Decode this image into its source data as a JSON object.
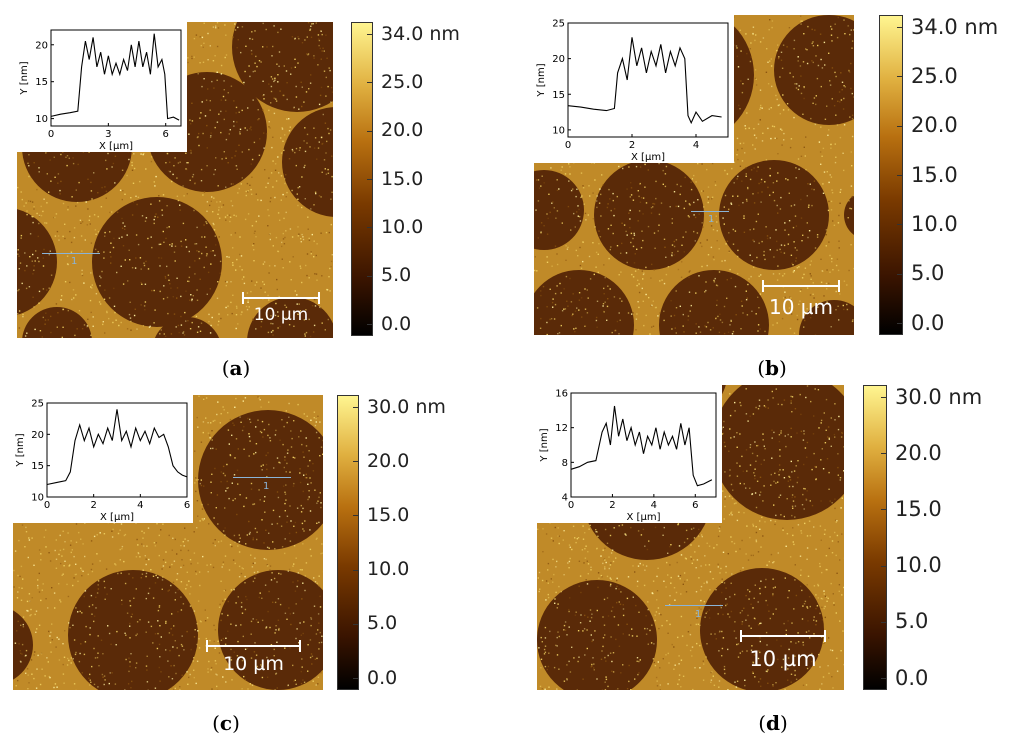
{
  "colors": {
    "dark_domain": "#5a2a08",
    "matrix": "#c08a28",
    "grain": "#f0d060"
  },
  "panels": {
    "a": {
      "caption_open": "(",
      "caption_letter": "a",
      "caption_close": ")",
      "scale_label": "10 µm",
      "colorbar_labels": [
        "34.0 nm",
        "25.0",
        "20.0",
        "15.0",
        "10.0",
        "5.0",
        "0.0"
      ],
      "profile_marker": "1",
      "chart_data": {
        "type": "line",
        "xlabel": "X [µm]",
        "ylabel": "Y [nm]",
        "xlim": [
          0,
          6.8
        ],
        "ylim": [
          9,
          22
        ],
        "xticks": [
          "0",
          "3",
          "6"
        ],
        "yticks": [
          "10",
          "15",
          "20"
        ],
        "x": [
          0,
          0.5,
          1.0,
          1.4,
          1.6,
          1.8,
          2.0,
          2.2,
          2.4,
          2.6,
          2.8,
          3.0,
          3.2,
          3.4,
          3.6,
          3.8,
          4.0,
          4.2,
          4.4,
          4.6,
          4.8,
          5.0,
          5.2,
          5.4,
          5.6,
          5.8,
          5.95,
          6.1,
          6.4,
          6.7
        ],
        "y": [
          10.3,
          10.6,
          10.8,
          11,
          17,
          20.5,
          18,
          21,
          17,
          19,
          16,
          18.5,
          16,
          17.5,
          16,
          18,
          16.5,
          20,
          17,
          20.5,
          17,
          19,
          16,
          21.5,
          17,
          18,
          16,
          10,
          10.2,
          9.8
        ]
      }
    },
    "b": {
      "caption_open": "(",
      "caption_letter": "b",
      "caption_close": ")",
      "scale_label": "10 µm",
      "colorbar_labels": [
        "34.0 nm",
        "25.0",
        "20.0",
        "15.0",
        "10.0",
        "5.0",
        "0.0"
      ],
      "profile_marker": "1",
      "chart_data": {
        "type": "line",
        "xlabel": "X [µm]",
        "ylabel": "Y [nm]",
        "xlim": [
          0,
          5
        ],
        "ylim": [
          9,
          25
        ],
        "xticks": [
          "0",
          "2",
          "4"
        ],
        "yticks": [
          "10",
          "15",
          "20",
          "25"
        ],
        "x": [
          0,
          0.4,
          0.8,
          1.2,
          1.45,
          1.55,
          1.7,
          1.85,
          2.0,
          2.15,
          2.3,
          2.45,
          2.6,
          2.75,
          2.9,
          3.05,
          3.2,
          3.35,
          3.5,
          3.65,
          3.75,
          3.85,
          4.0,
          4.2,
          4.5,
          4.8
        ],
        "y": [
          13.4,
          13.2,
          12.9,
          12.7,
          13,
          18,
          20,
          17,
          23,
          19,
          21.5,
          18,
          21,
          19,
          22,
          18,
          21,
          19,
          21.5,
          20,
          12,
          11,
          12.5,
          11.2,
          12,
          11.8
        ]
      }
    },
    "c": {
      "caption_open": "(",
      "caption_letter": "c",
      "caption_close": ")",
      "scale_label": "10 µm",
      "colorbar_labels": [
        "30.0 nm",
        "20.0",
        "15.0",
        "10.0",
        "5.0",
        "0.0"
      ],
      "profile_marker": "1",
      "chart_data": {
        "type": "line",
        "xlabel": "X [µm]",
        "ylabel": "Y [nm]",
        "xlim": [
          0,
          6
        ],
        "ylim": [
          10,
          25
        ],
        "xticks": [
          "0",
          "2",
          "4",
          "6"
        ],
        "yticks": [
          "10",
          "15",
          "20",
          "25"
        ],
        "x": [
          0,
          0.4,
          0.8,
          1.0,
          1.2,
          1.4,
          1.6,
          1.8,
          2.0,
          2.2,
          2.4,
          2.6,
          2.8,
          3.0,
          3.2,
          3.4,
          3.6,
          3.8,
          4.0,
          4.2,
          4.4,
          4.6,
          4.8,
          5.0,
          5.2,
          5.4,
          5.6,
          5.8,
          6.0
        ],
        "y": [
          12,
          12.3,
          12.6,
          14,
          19,
          21.5,
          19,
          21,
          18,
          20,
          18.5,
          21,
          19,
          24,
          19,
          20.5,
          18,
          21,
          19,
          20.5,
          18.5,
          21,
          19.5,
          20,
          18,
          15,
          14,
          13.5,
          13.2
        ]
      }
    },
    "d": {
      "caption_open": "(",
      "caption_letter": "d",
      "caption_close": ")",
      "scale_label": "10 µm",
      "colorbar_labels": [
        "30.0 nm",
        "20.0",
        "15.0",
        "10.0",
        "5.0",
        "0.0"
      ],
      "profile_marker": "1",
      "chart_data": {
        "type": "line",
        "xlabel": "X [µm]",
        "ylabel": "Y [nm]",
        "xlim": [
          0,
          7
        ],
        "ylim": [
          4,
          16
        ],
        "xticks": [
          "0",
          "2",
          "4",
          "6"
        ],
        "yticks": [
          "4",
          "8",
          "12",
          "16"
        ],
        "x": [
          0,
          0.4,
          0.8,
          1.2,
          1.5,
          1.7,
          1.9,
          2.1,
          2.3,
          2.5,
          2.7,
          2.9,
          3.1,
          3.3,
          3.5,
          3.7,
          3.9,
          4.1,
          4.3,
          4.5,
          4.7,
          4.9,
          5.1,
          5.3,
          5.5,
          5.7,
          5.9,
          6.1,
          6.4,
          6.8
        ],
        "y": [
          7.2,
          7.5,
          8,
          8.2,
          11.5,
          12.5,
          10,
          14.5,
          11,
          13,
          10.5,
          12,
          10,
          11.5,
          9,
          11,
          10,
          12,
          9.5,
          11.5,
          10,
          11,
          9.5,
          12.5,
          10,
          12,
          6.5,
          5.3,
          5.5,
          6
        ]
      }
    }
  }
}
